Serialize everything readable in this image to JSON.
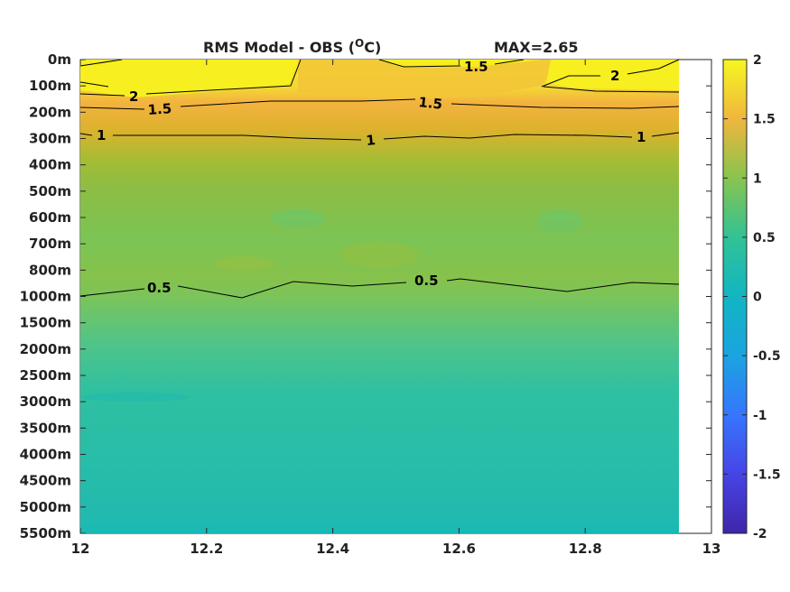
{
  "chart_data": {
    "type": "heatmap",
    "title": "RMS Model - OBS (ᴼC)",
    "title_parts": {
      "prefix": "RMS Model - OBS (",
      "superscript": "O",
      "suffix": "C)"
    },
    "max_label": "MAX=2.65",
    "x_ticks": [
      "12",
      "12.2",
      "12.4",
      "12.6",
      "12.8",
      "13"
    ],
    "x_range": [
      12,
      13
    ],
    "data_x_extent": [
      12,
      12.95
    ],
    "y_ticks": [
      "0m",
      "100m",
      "200m",
      "300m",
      "400m",
      "500m",
      "600m",
      "700m",
      "800m",
      "1000m",
      "1500m",
      "2000m",
      "2500m",
      "3000m",
      "3500m",
      "4000m",
      "4500m",
      "5000m",
      "5500m"
    ],
    "colorbar": {
      "range": [
        -2,
        2
      ],
      "ticks": [
        "2",
        "1.5",
        "1",
        "0.5",
        "0",
        "-0.5",
        "-1",
        "-1.5",
        "-2"
      ]
    },
    "depth_profile_rms": [
      2.05,
      1.9,
      1.35,
      1.0,
      0.85,
      0.78,
      0.75,
      0.74,
      0.7,
      0.5,
      0.38,
      0.3,
      0.26,
      0.24,
      0.23,
      0.23,
      0.22,
      0.21,
      0.18
    ],
    "contours": [
      {
        "level": "2",
        "labels": [
          "2",
          "2"
        ]
      },
      {
        "level": "1.5",
        "labels": [
          "1.5",
          "1.5",
          "1.5"
        ]
      },
      {
        "level": "1",
        "labels": [
          "1",
          "1",
          "1"
        ]
      },
      {
        "level": "0.5",
        "labels": [
          "0.5",
          "0.5"
        ]
      }
    ]
  }
}
